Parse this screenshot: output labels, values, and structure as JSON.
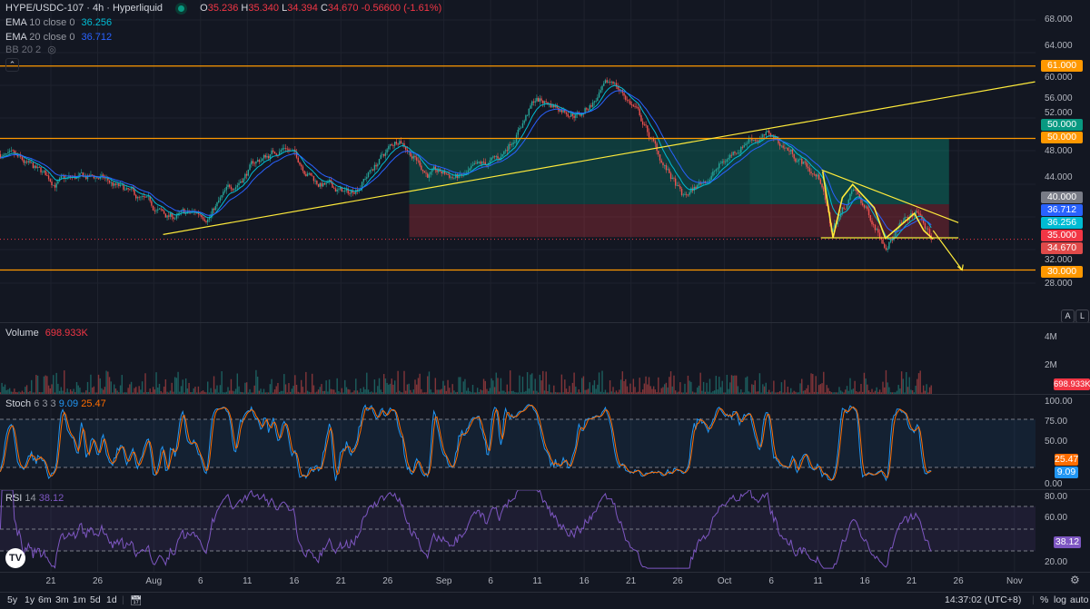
{
  "header": {
    "symbol": "HYPE/USDC-107 · 4h · Hyperliquid",
    "o_label": "O",
    "o": "35.236",
    "h_label": "H",
    "h": "35.340",
    "l_label": "L",
    "l": "34.394",
    "c_label": "C",
    "c": "34.670",
    "change": "-0.56600 (-1.61%)",
    "ema10_name": "EMA",
    "ema10_params": "10 close 0",
    "ema10_value": "36.256",
    "ema20_name": "EMA",
    "ema20_params": "20 close 0",
    "ema20_value": "36.712",
    "bb": "BB 20 2"
  },
  "colors": {
    "up": "#26a69a",
    "down": "#ef5350",
    "ema10": "#00bcd4",
    "ema20": "#2962ff",
    "drawing": "#ffeb3b",
    "level": "#ff9800",
    "stoch_k": "#2196f3",
    "stoch_d": "#ff6d00",
    "rsi": "#7e57c2"
  },
  "price_axis": {
    "ticks": [
      "68.000",
      "64.000",
      "60.000",
      "56.000",
      "52.000",
      "48.000",
      "44.000",
      "32.000",
      "28.000"
    ],
    "tags": [
      {
        "text": "61.000",
        "price": 61,
        "color": "#ff9800"
      },
      {
        "text": "50.000",
        "price": 51,
        "color": "#089981"
      },
      {
        "text": "50.000",
        "price": 50,
        "color": "#ff9800"
      },
      {
        "text": "40.000",
        "price": 40,
        "color": "#787b86"
      },
      {
        "text": "36.712",
        "price": 38.2,
        "color": "#2962ff"
      },
      {
        "text": "36.256",
        "price": 36.5,
        "color": "#00bcd4"
      },
      {
        "text": "35.000",
        "price": 34.9,
        "color": "#f23645"
      },
      {
        "text": "34.670",
        "price": 33.2,
        "color": "#e04a4a"
      },
      {
        "text": "30.000",
        "price": 30,
        "color": "#ff9800"
      }
    ]
  },
  "scale_buttons": {
    "auto": "A",
    "log": "L"
  },
  "volume": {
    "name": "Volume",
    "value": "698.933K",
    "ticks": [
      "4M",
      "2M"
    ],
    "tag": "698.933K"
  },
  "stoch": {
    "name": "Stoch",
    "params": "6 3 3",
    "k": "9.09",
    "d": "25.47",
    "ticks": [
      "100.00",
      "75.00",
      "50.00",
      "0.00"
    ]
  },
  "rsi": {
    "name": "RSI",
    "params": "14",
    "value": "38.12",
    "ticks": [
      "80.00",
      "60.00",
      "20.00"
    ]
  },
  "time_axis": {
    "labels": [
      {
        "t": "21",
        "day": 0
      },
      {
        "t": "26",
        "day": 5
      },
      {
        "t": "Aug",
        "day": 11
      },
      {
        "t": "6",
        "day": 16
      },
      {
        "t": "11",
        "day": 21
      },
      {
        "t": "16",
        "day": 26
      },
      {
        "t": "21",
        "day": 31
      },
      {
        "t": "26",
        "day": 36
      },
      {
        "t": "Sep",
        "day": 42
      },
      {
        "t": "6",
        "day": 47
      },
      {
        "t": "11",
        "day": 52
      },
      {
        "t": "16",
        "day": 57
      },
      {
        "t": "21",
        "day": 62
      },
      {
        "t": "26",
        "day": 67
      },
      {
        "t": "Oct",
        "day": 72
      },
      {
        "t": "6",
        "day": 77
      },
      {
        "t": "11",
        "day": 82
      },
      {
        "t": "16",
        "day": 87
      },
      {
        "t": "21",
        "day": 92
      },
      {
        "t": "26",
        "day": 97
      },
      {
        "t": "Nov",
        "day": 103
      }
    ]
  },
  "bottom_bar": {
    "ranges": [
      "5y",
      "1y",
      "6m",
      "3m",
      "1m",
      "5d",
      "1d"
    ],
    "clock": "14:37:02 (UTC+8)",
    "percent": "%",
    "log": "log",
    "auto": "auto"
  },
  "chart_data": {
    "type": "candlestick",
    "x_unit": "days since Jul 21",
    "xlim": [
      -5.4,
      105
    ],
    "ylim": [
      28,
      68
    ],
    "price_path": [
      [
        -5.4,
        47.6
      ],
      [
        0.4,
        43.4
      ],
      [
        5.2,
        44
      ],
      [
        12.5,
        38
      ],
      [
        16.9,
        38.6
      ],
      [
        21.7,
        46.2
      ],
      [
        25.1,
        49
      ],
      [
        28.5,
        43.4
      ],
      [
        31.9,
        41.4
      ],
      [
        37.3,
        50.3
      ],
      [
        40.2,
        44.8
      ],
      [
        44.1,
        44
      ],
      [
        48,
        46.9
      ],
      [
        51.8,
        55.9
      ],
      [
        56.7,
        53.8
      ],
      [
        60.1,
        58.6
      ],
      [
        62.5,
        54.5
      ],
      [
        65.4,
        46.2
      ],
      [
        67.6,
        40.7
      ],
      [
        71.3,
        45.5
      ],
      [
        74.7,
        50.3
      ],
      [
        77.1,
        50.3
      ],
      [
        80,
        46.9
      ],
      [
        82.4,
        43.4
      ],
      [
        83.4,
        35.9
      ],
      [
        85.8,
        42
      ],
      [
        89.2,
        34.5
      ],
      [
        92.6,
        38.6
      ],
      [
        94.1,
        34.67
      ]
    ],
    "horizontal_levels": [
      61,
      50,
      30
    ],
    "trendline": [
      [
        12,
        35.4
      ],
      [
        105.2,
        58.6
      ]
    ],
    "descending_line": [
      [
        82.4,
        45.2
      ],
      [
        97,
        37.2
      ]
    ],
    "support_line": {
      "from": 82.3,
      "to": 97,
      "price": 34.9
    },
    "position_zone": {
      "from": 38.3,
      "to": 96,
      "target": 50,
      "entry": 40,
      "stop": 35
    },
    "zigzag": [
      [
        82.5,
        45
      ],
      [
        83.6,
        34.9
      ],
      [
        84.6,
        41
      ],
      [
        85.7,
        43
      ],
      [
        88,
        39.5
      ],
      [
        89.2,
        34.8
      ],
      [
        91,
        37
      ],
      [
        92.3,
        38.6
      ],
      [
        93.3,
        36
      ],
      [
        94.3,
        34.7
      ]
    ],
    "projection": [
      [
        94.3,
        36
      ],
      [
        97.4,
        30
      ]
    ]
  }
}
